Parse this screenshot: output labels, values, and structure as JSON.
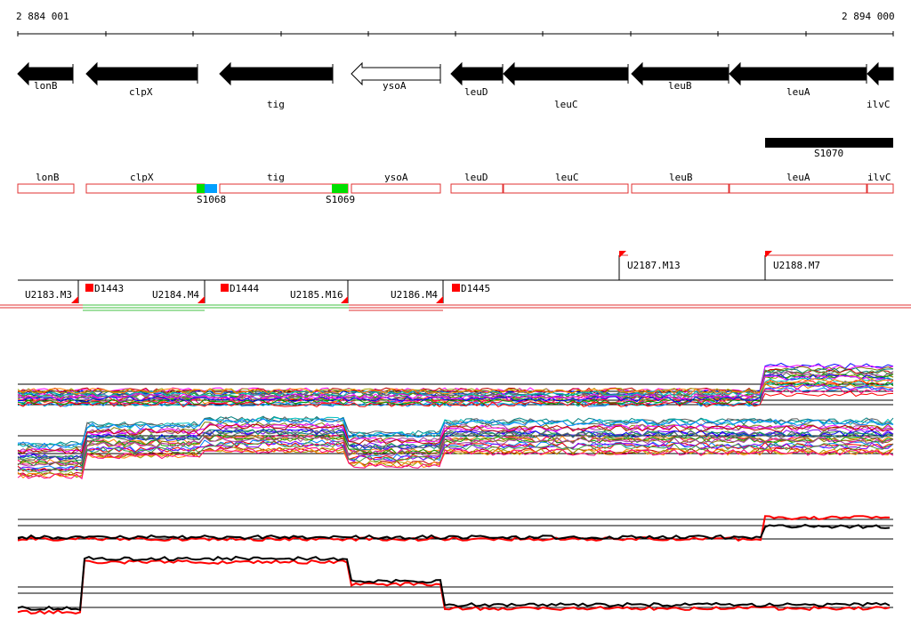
{
  "axis": {
    "start_label": "2 884 001",
    "end_label": "2 894 000"
  },
  "genes": [
    {
      "name": "lonB",
      "strand": "-",
      "fill": "black"
    },
    {
      "name": "clpX",
      "strand": "-",
      "fill": "black"
    },
    {
      "name": "tig",
      "strand": "-",
      "fill": "black"
    },
    {
      "name": "ysoA",
      "strand": "-",
      "fill": "white"
    },
    {
      "name": "leuD",
      "strand": "-",
      "fill": "black"
    },
    {
      "name": "leuC",
      "strand": "-",
      "fill": "black"
    },
    {
      "name": "leuB",
      "strand": "-",
      "fill": "black"
    },
    {
      "name": "leuA",
      "strand": "-",
      "fill": "black"
    },
    {
      "name": "ilvC",
      "strand": "-",
      "fill": "black"
    }
  ],
  "transcript_bar_label": "S1070",
  "annotation_boxes": [
    "lonB",
    "clpX",
    "tig",
    "ysoA",
    "leuD",
    "leuC",
    "leuB",
    "leuA",
    "ilvC"
  ],
  "segment_labels": [
    "S1068",
    "S1069"
  ],
  "upshift_labels": [
    "U2183.M3",
    "U2184.M4",
    "U2185.M16",
    "U2186.M4",
    "U2187.M13",
    "U2188.M7"
  ],
  "downshift_labels": [
    "D1443",
    "D1444",
    "D1445"
  ],
  "colors": {
    "gene_fill": "#000000",
    "box_outline": "#e03030",
    "marker_red": "#ff0000",
    "segment_green": "#00e000",
    "segment_blue": "#00a0ff"
  }
}
